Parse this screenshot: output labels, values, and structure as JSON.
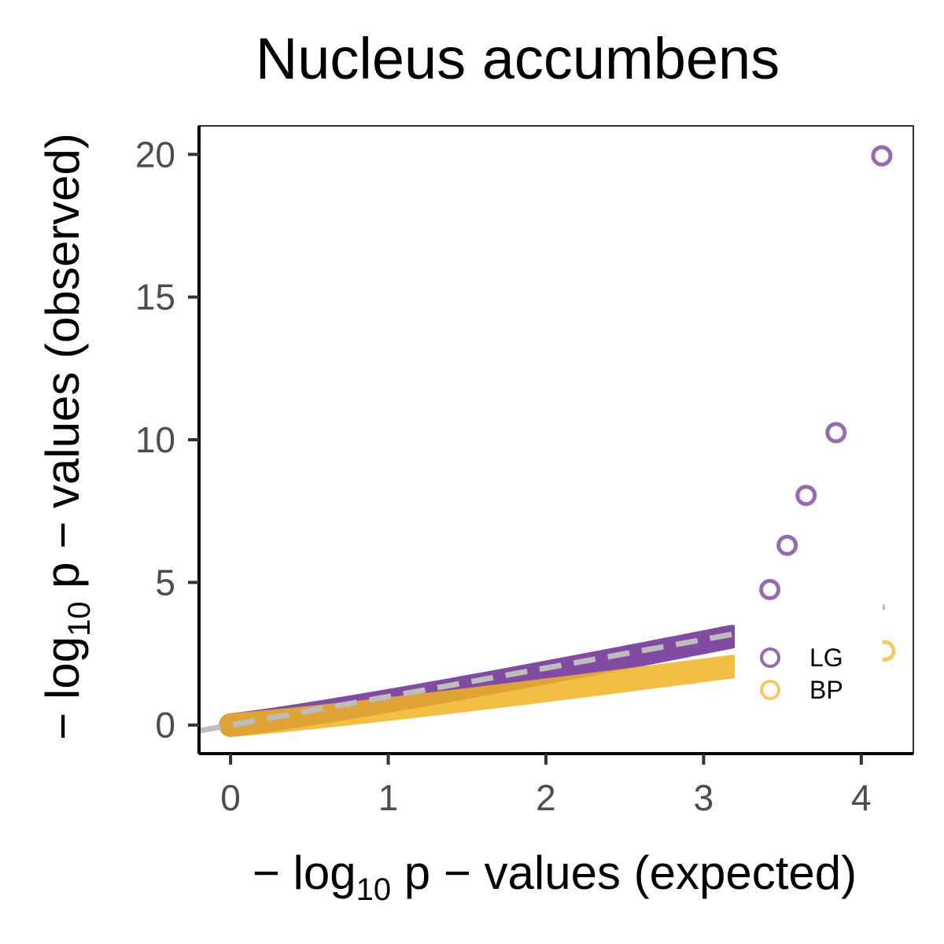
{
  "chart_data": {
    "type": "scatter",
    "title": "Nucleus accumbens",
    "xlabel": {
      "prefix": "− log",
      "sub": "10",
      "suffix": " p − values (expected)"
    },
    "ylabel": {
      "prefix": "− log",
      "sub": "10",
      "suffix": " p − values (observed)"
    },
    "xlim": [
      -0.2,
      4.33
    ],
    "ylim": [
      -1,
      21
    ],
    "x_ticks": [
      0,
      1,
      2,
      3,
      4
    ],
    "y_ticks": [
      0,
      5,
      10,
      15,
      20
    ],
    "x_tick_labels": [
      "0",
      "1",
      "2",
      "3",
      "4"
    ],
    "y_tick_labels": [
      "0",
      "5",
      "10",
      "15",
      "20"
    ],
    "grid": false,
    "legend_position": "bottom-right",
    "reference_line": {
      "style": "dashed",
      "color": "#bdbdbd",
      "from": [
        -0.2,
        -0.2
      ],
      "to": [
        4.15,
        4.15
      ]
    },
    "series": [
      {
        "name": "LG",
        "color": "#6a2c91",
        "dense_curve": {
          "x_start": 0.0,
          "x_end": 3.18,
          "y_end": 3.1
        },
        "outliers": {
          "x": [
            3.42,
            3.53,
            3.65,
            3.84,
            4.13
          ],
          "y": [
            4.75,
            6.3,
            8.05,
            10.25,
            19.95
          ]
        }
      },
      {
        "name": "BP",
        "color": "#f0b323",
        "dense_curve": {
          "x_start": 0.0,
          "x_end": 3.18,
          "y_end": 2.05
        },
        "outliers": {
          "x": [
            4.15
          ],
          "y": [
            2.6
          ]
        }
      }
    ]
  }
}
